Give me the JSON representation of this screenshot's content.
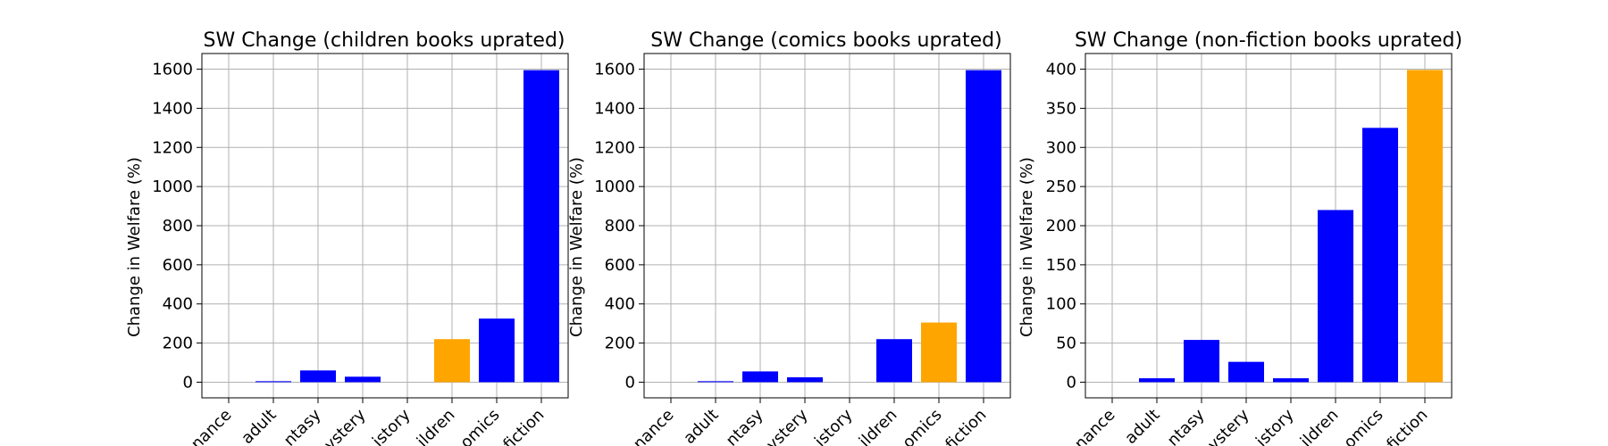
{
  "chart_data": [
    {
      "type": "bar",
      "title": "SW Change (children books uprated)",
      "ylabel": "Change in Welfare (%)",
      "xlabel": "",
      "categories": [
        "Romance",
        "Young adult",
        "Fantasy",
        "Mystery",
        "History",
        "Children",
        "Comics",
        "Non-fiction"
      ],
      "visible_tick_labels": [
        "nance",
        "adult",
        "ntasy",
        "ystery",
        "istory",
        "ildren",
        "omics",
        "fiction"
      ],
      "values": [
        0,
        5,
        60,
        28,
        0,
        220,
        325,
        1595
      ],
      "highlight_index": 5,
      "ylim": [
        -80,
        1680
      ],
      "yticks": [
        0,
        200,
        400,
        600,
        800,
        1000,
        1200,
        1400,
        1600
      ],
      "grid": true
    },
    {
      "type": "bar",
      "title": "SW Change (comics books uprated)",
      "ylabel": "Change in Welfare (%)",
      "xlabel": "",
      "categories": [
        "Romance",
        "Young adult",
        "Fantasy",
        "Mystery",
        "History",
        "Children",
        "Comics",
        "Non-fiction"
      ],
      "visible_tick_labels": [
        "nance",
        "adult",
        "ntasy",
        "ystery",
        "istory",
        "ildren",
        "omics",
        "fiction"
      ],
      "values": [
        0,
        5,
        55,
        25,
        0,
        220,
        305,
        1595
      ],
      "highlight_index": 6,
      "ylim": [
        -80,
        1680
      ],
      "yticks": [
        0,
        200,
        400,
        600,
        800,
        1000,
        1200,
        1400,
        1600
      ],
      "grid": true
    },
    {
      "type": "bar",
      "title": "SW Change (non-fiction books uprated)",
      "ylabel": "Change in Welfare (%)",
      "xlabel": "",
      "categories": [
        "Romance",
        "Young adult",
        "Fantasy",
        "Mystery",
        "History",
        "Children",
        "Comics",
        "Non-fiction"
      ],
      "visible_tick_labels": [
        "nance",
        "adult",
        "ntasy",
        "ystery",
        "istory",
        "ildren",
        "omics",
        "fiction"
      ],
      "values": [
        0,
        5,
        54,
        26,
        5,
        220,
        325,
        399
      ],
      "highlight_index": 7,
      "ylim": [
        -20,
        420
      ],
      "yticks": [
        0,
        50,
        100,
        150,
        200,
        250,
        300,
        350,
        400
      ],
      "grid": true
    }
  ],
  "colors": {
    "bar": "#0000ff",
    "highlight": "#ffa500",
    "grid": "#b0b0b0",
    "axis": "#000000"
  }
}
